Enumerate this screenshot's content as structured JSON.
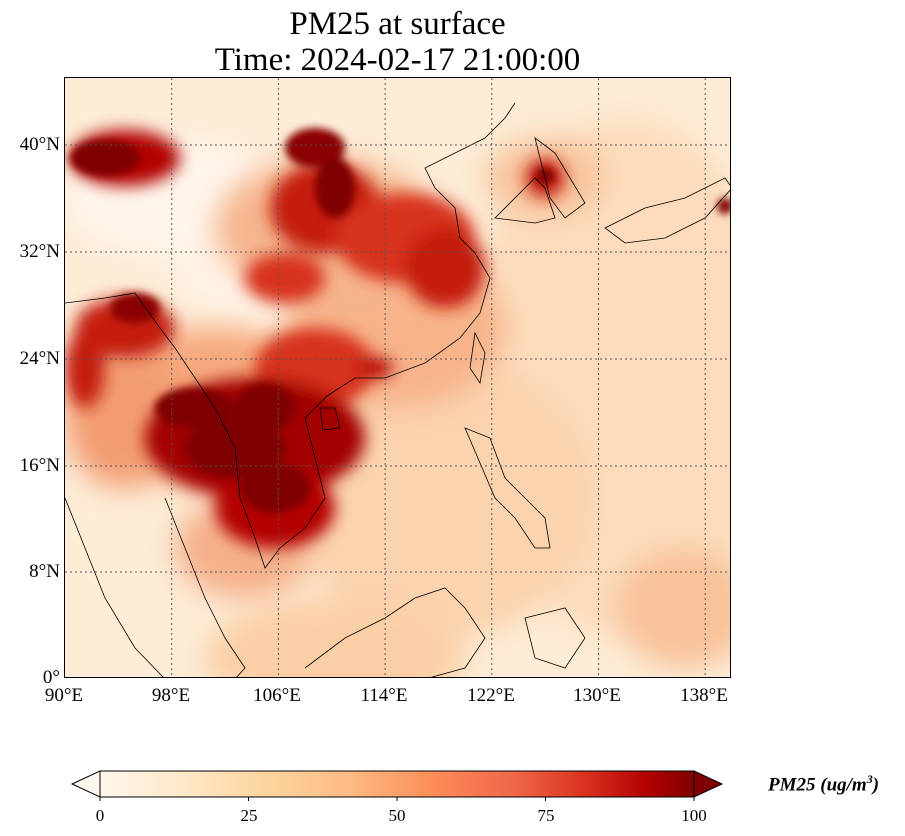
{
  "title": {
    "line1": "PM25 at surface",
    "line2": "Time: 2024-02-17 21:00:00"
  },
  "map": {
    "extent": {
      "lon_min": 90,
      "lon_max": 140,
      "lat_min": 0,
      "lat_max": 45
    },
    "gridlines": "dotted",
    "lat_labels": [
      "40°N",
      "32°N",
      "24°N",
      "16°N",
      "8°N",
      "0°"
    ],
    "lon_labels": [
      "90°E",
      "98°E",
      "106°E",
      "114°E",
      "122°E",
      "130°E",
      "138°E"
    ],
    "variable": "PM25",
    "hotspots": [
      {
        "region": "northern India / Tibetan foothills",
        "level": "high"
      },
      {
        "region": "North China Plain",
        "level": "high"
      },
      {
        "region": "Sichuan Basin",
        "level": "high"
      },
      {
        "region": "Myanmar / Thailand / Laos",
        "level": "very high"
      },
      {
        "region": "Cambodia / southern Vietnam",
        "level": "very high"
      },
      {
        "region": "Korean peninsula",
        "level": "high"
      }
    ]
  },
  "colorbar": {
    "min": 0,
    "max": 100,
    "ticks": [
      "0",
      "25",
      "50",
      "75",
      "100"
    ],
    "label": "PM25 (ug/m",
    "label_superscript": "3",
    "label_close": ")",
    "extend": "both",
    "colormap": "OrRd",
    "colors": [
      "#fff7ec",
      "#fee8c8",
      "#fdd49e",
      "#fdbb84",
      "#fc8d59",
      "#ef6548",
      "#d7301f",
      "#b30000",
      "#7f0000"
    ]
  }
}
